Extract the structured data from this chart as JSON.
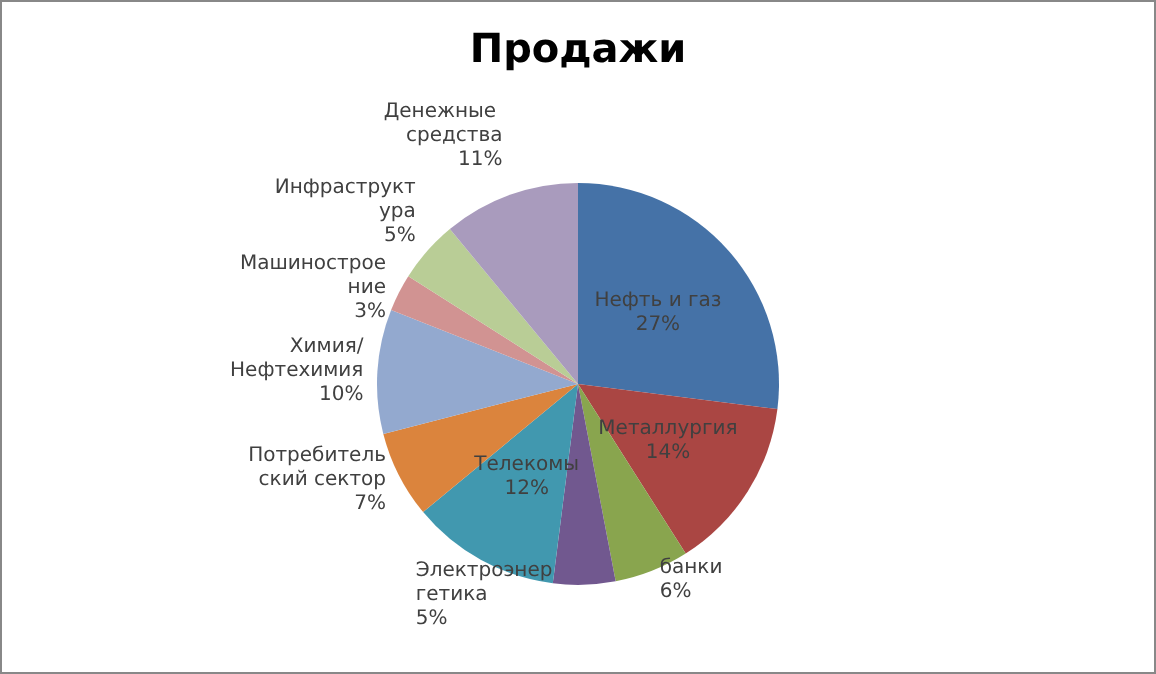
{
  "chart_data": {
    "type": "pie",
    "title": "Продажи",
    "categories": [
      "Нефть и газ",
      "Металлургия",
      "банки",
      "Электроэнергетика",
      "Телекомы",
      "Потребительский сектор",
      "Химия/Нефтехимия",
      "Машиностроение",
      "Инфраструктура",
      "Денежные средства"
    ],
    "values": [
      27,
      14,
      6,
      5,
      12,
      7,
      10,
      3,
      5,
      11
    ],
    "value_labels": [
      "27%",
      "14%",
      "6%",
      "5%",
      "12%",
      "7%",
      "10%",
      "3%",
      "5%",
      "11%"
    ],
    "colors": [
      "#4572a7",
      "#aa4643",
      "#89a54e",
      "#71588f",
      "#4198af",
      "#db843d",
      "#93a9cf",
      "#d19392",
      "#b9cd96",
      "#a99bbd"
    ],
    "legend": false
  }
}
